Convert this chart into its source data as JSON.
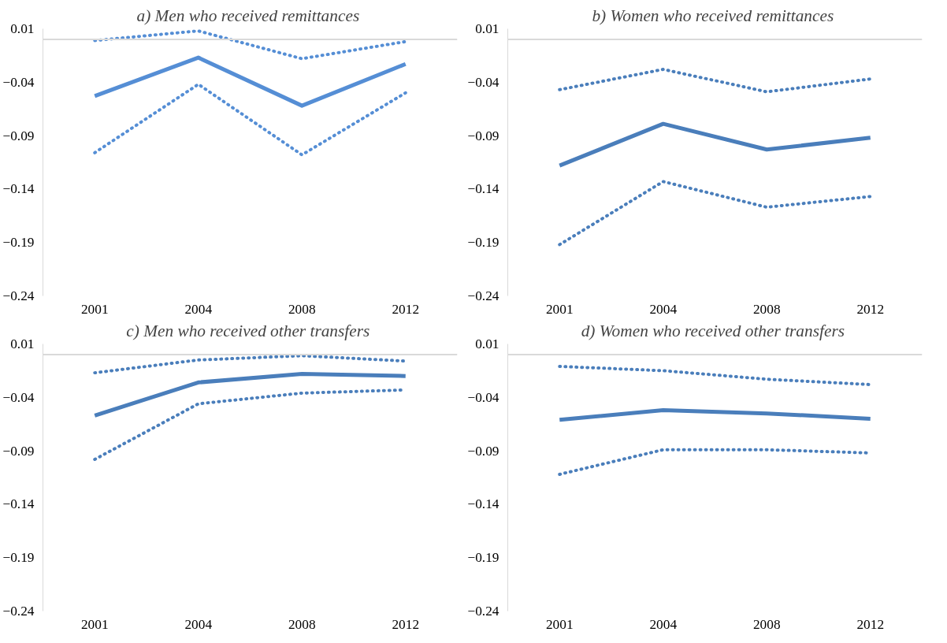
{
  "chart_data": [
    {
      "type": "line",
      "title": "a)  Men who received remittances",
      "categories": [
        "2001",
        "2004",
        "2008",
        "2012"
      ],
      "ylim": [
        -0.24,
        0.01
      ],
      "yticks": [
        0.01,
        -0.04,
        -0.09,
        -0.14,
        -0.19,
        -0.24
      ],
      "grid": false,
      "ref_lines": [
        {
          "axis": "y",
          "value": 0,
          "color": "#d9d9d9"
        }
      ],
      "series": [
        {
          "color": "#558ed5",
          "line_style": "solid",
          "values": [
            -0.053,
            -0.017,
            -0.062,
            -0.023
          ]
        },
        {
          "color": "#558ed5",
          "line_style": "dotted",
          "values": [
            -0.001,
            0.008,
            -0.018,
            -0.002
          ]
        },
        {
          "color": "#558ed5",
          "line_style": "dotted",
          "values": [
            -0.106,
            -0.042,
            -0.108,
            -0.05
          ]
        }
      ]
    },
    {
      "type": "line",
      "title": "b)  Women who received remittances",
      "categories": [
        "2001",
        "2004",
        "2008",
        "2012"
      ],
      "ylim": [
        -0.24,
        0.01
      ],
      "yticks": [
        0.01,
        -0.04,
        -0.09,
        -0.14,
        -0.19,
        -0.24
      ],
      "grid": false,
      "ref_lines": [
        {
          "axis": "y",
          "value": 0,
          "color": "#d9d9d9"
        }
      ],
      "series": [
        {
          "color": "#4a7ebb",
          "line_style": "solid",
          "values": [
            -0.118,
            -0.079,
            -0.103,
            -0.092
          ]
        },
        {
          "color": "#4a7ebb",
          "line_style": "dotted",
          "values": [
            -0.047,
            -0.028,
            -0.049,
            -0.037
          ]
        },
        {
          "color": "#4a7ebb",
          "line_style": "dotted",
          "values": [
            -0.192,
            -0.133,
            -0.157,
            -0.147
          ]
        }
      ]
    },
    {
      "type": "line",
      "title": "c)  Men who received other transfers",
      "categories": [
        "2001",
        "2004",
        "2008",
        "2012"
      ],
      "ylim": [
        -0.24,
        0.01
      ],
      "yticks": [
        0.01,
        -0.04,
        -0.09,
        -0.14,
        -0.19,
        -0.24
      ],
      "grid": false,
      "ref_lines": [
        {
          "axis": "y",
          "value": 0,
          "color": "#d9d9d9"
        }
      ],
      "series": [
        {
          "color": "#4a7ebb",
          "line_style": "solid",
          "values": [
            -0.057,
            -0.026,
            -0.018,
            -0.02
          ]
        },
        {
          "color": "#4a7ebb",
          "line_style": "dotted",
          "values": [
            -0.017,
            -0.005,
            -0.001,
            -0.006
          ]
        },
        {
          "color": "#4a7ebb",
          "line_style": "dotted",
          "values": [
            -0.098,
            -0.046,
            -0.036,
            -0.033
          ]
        }
      ]
    },
    {
      "type": "line",
      "title": "d)  Women who received other transfers",
      "categories": [
        "2001",
        "2004",
        "2008",
        "2012"
      ],
      "ylim": [
        -0.24,
        0.01
      ],
      "yticks": [
        0.01,
        -0.04,
        -0.09,
        -0.14,
        -0.19,
        -0.24
      ],
      "grid": false,
      "ref_lines": [
        {
          "axis": "y",
          "value": 0,
          "color": "#d9d9d9"
        }
      ],
      "series": [
        {
          "color": "#4a7ebb",
          "line_style": "solid",
          "values": [
            -0.061,
            -0.052,
            -0.055,
            -0.06
          ]
        },
        {
          "color": "#4a7ebb",
          "line_style": "dotted",
          "values": [
            -0.011,
            -0.015,
            -0.023,
            -0.028
          ]
        },
        {
          "color": "#4a7ebb",
          "line_style": "dotted",
          "values": [
            -0.112,
            -0.089,
            -0.089,
            -0.092
          ]
        }
      ]
    }
  ]
}
